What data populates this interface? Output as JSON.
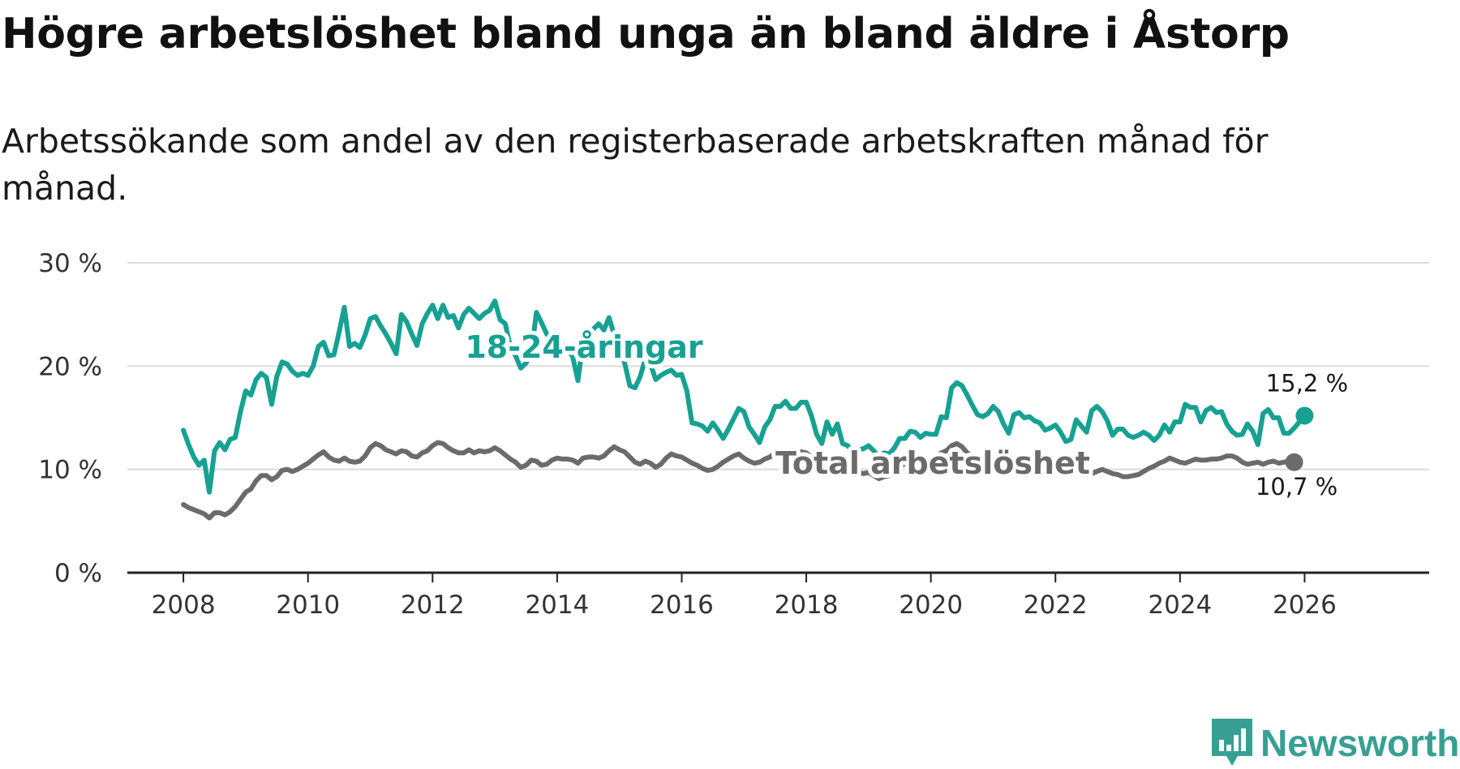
{
  "title": "Högre arbetslöshet bland unga än bland äldre i Åstorp",
  "subtitle": "Arbetssökande som andel av den registerbaserade arbetskraften månad för månad.",
  "brand": {
    "name": "Newsworthy",
    "color": "#37a093"
  },
  "chart_data": {
    "type": "line",
    "x_start": 2008.0,
    "x_step": 0.08333,
    "ylim": [
      0,
      30
    ],
    "xlim": [
      2007.1,
      2028.0
    ],
    "yticks": [
      0,
      10,
      20,
      30
    ],
    "ytick_labels": [
      "0 %",
      "10 %",
      "20 %",
      "30 %"
    ],
    "xticks": [
      2008,
      2010,
      2012,
      2014,
      2016,
      2018,
      2020,
      2022,
      2024,
      2026
    ],
    "xtick_labels": [
      "2008",
      "2010",
      "2012",
      "2014",
      "2016",
      "2018",
      "2020",
      "2022",
      "2024",
      "2026"
    ],
    "grid": true,
    "series": [
      {
        "name": "18-24-åringar",
        "color": "#17a193",
        "label": "18-24-åringar",
        "end_label": "15,2 %",
        "values": [
          13.8,
          12.4,
          11.2,
          10.4,
          10.9,
          7.8,
          11.8,
          12.6,
          11.9,
          12.9,
          13.1,
          15.6,
          17.6,
          17.2,
          18.7,
          19.3,
          18.9,
          16.3,
          19.0,
          20.4,
          20.2,
          19.5,
          19.1,
          19.3,
          19.1,
          20.0,
          21.9,
          22.3,
          21.0,
          21.1,
          23.3,
          25.7,
          21.9,
          22.2,
          21.8,
          23.0,
          24.6,
          24.8,
          23.9,
          23.1,
          22.2,
          21.2,
          25.0,
          24.3,
          23.1,
          22.0,
          24.1,
          25.1,
          25.9,
          24.6,
          25.9,
          24.7,
          24.9,
          23.7,
          25.0,
          25.6,
          25.1,
          24.6,
          25.1,
          25.4,
          26.3,
          24.5,
          24.1,
          21.8,
          21.0,
          19.8,
          20.3,
          21.2,
          25.2,
          24.2,
          23.1,
          22.5,
          22.4,
          22.1,
          21.6,
          20.9,
          18.6,
          22.3,
          23.2,
          23.6,
          24.1,
          23.5,
          24.7,
          23.0,
          21.7,
          20.3,
          18.1,
          17.9,
          19.0,
          20.7,
          20.2,
          18.7,
          19.1,
          19.4,
          19.6,
          19.1,
          19.2,
          17.6,
          14.5,
          14.4,
          14.2,
          13.7,
          14.5,
          13.8,
          13.0,
          13.9,
          14.9,
          15.9,
          15.6,
          14.1,
          13.4,
          12.6,
          14.1,
          14.8,
          16.1,
          16.1,
          16.6,
          15.9,
          15.9,
          16.5,
          16.5,
          15.2,
          13.4,
          12.5,
          14.6,
          13.4,
          14.4,
          12.5,
          12.3,
          11.7,
          11.9,
          12.0,
          12.3,
          11.8,
          11.2,
          11.6,
          11.5,
          12.1,
          13.0,
          13.0,
          13.7,
          13.6,
          13.1,
          13.5,
          13.4,
          13.4,
          15.1,
          15.0,
          17.9,
          18.4,
          18.1,
          17.2,
          16.2,
          15.3,
          15.1,
          15.4,
          16.1,
          15.6,
          14.4,
          13.5,
          15.3,
          15.5,
          15.0,
          15.1,
          14.7,
          14.5,
          13.8,
          14.0,
          14.3,
          13.6,
          12.7,
          12.9,
          14.8,
          14.2,
          13.6,
          15.7,
          16.1,
          15.6,
          14.7,
          13.3,
          13.9,
          13.9,
          13.3,
          13.1,
          13.3,
          13.6,
          13.3,
          12.8,
          13.3,
          14.3,
          13.6,
          14.6,
          14.6,
          16.3,
          16.0,
          16.0,
          14.6,
          15.7,
          16.0,
          15.5,
          15.6,
          14.4,
          13.7,
          13.3,
          13.4,
          14.4,
          13.7,
          12.4,
          15.4,
          15.8,
          15.0,
          15.0,
          13.5,
          13.5,
          14.0,
          14.6,
          15.2
        ]
      },
      {
        "name": "Total arbetslöshet",
        "color": "#6b6b6d",
        "label": "Total arbetslöshet",
        "end_label": "10,7 %",
        "values": [
          6.6,
          6.3,
          6.1,
          5.9,
          5.7,
          5.3,
          5.8,
          5.8,
          5.6,
          5.9,
          6.4,
          7.1,
          7.8,
          8.1,
          8.9,
          9.4,
          9.4,
          9.0,
          9.3,
          9.9,
          10.0,
          9.8,
          10.0,
          10.3,
          10.6,
          11.0,
          11.4,
          11.7,
          11.2,
          10.9,
          10.8,
          11.1,
          10.8,
          10.7,
          10.8,
          11.3,
          12.1,
          12.5,
          12.3,
          11.9,
          11.7,
          11.5,
          11.8,
          11.7,
          11.3,
          11.2,
          11.6,
          11.8,
          12.3,
          12.6,
          12.5,
          12.1,
          11.8,
          11.6,
          11.6,
          11.9,
          11.6,
          11.8,
          11.7,
          11.8,
          12.1,
          11.8,
          11.4,
          11.0,
          10.7,
          10.2,
          10.4,
          10.9,
          10.8,
          10.4,
          10.5,
          10.9,
          11.1,
          11.0,
          11.0,
          10.9,
          10.6,
          11.1,
          11.2,
          11.2,
          11.1,
          11.3,
          11.8,
          12.2,
          11.9,
          11.7,
          11.2,
          10.7,
          10.5,
          10.8,
          10.6,
          10.2,
          10.5,
          11.1,
          11.5,
          11.3,
          11.2,
          10.9,
          10.6,
          10.4,
          10.1,
          9.9,
          10.0,
          10.3,
          10.7,
          11.0,
          11.3,
          11.5,
          11.1,
          10.8,
          10.6,
          10.7,
          11.0,
          11.2,
          11.6,
          11.7,
          11.9,
          11.6,
          11.5,
          11.7,
          11.6,
          11.2,
          10.9,
          10.2,
          10.6,
          10.6,
          10.4,
          10.0,
          9.8,
          9.6,
          9.7,
          9.6,
          9.7,
          9.4,
          9.1,
          9.3,
          9.4,
          9.9,
          10.3,
          10.5,
          10.9,
          11.1,
          10.7,
          10.8,
          10.9,
          11.2,
          11.6,
          11.8,
          12.3,
          12.5,
          12.2,
          11.6,
          11.3,
          11.1,
          10.8,
          10.9,
          11.1,
          10.9,
          10.6,
          10.4,
          10.2,
          10.4,
          10.5,
          10.6,
          10.3,
          10.1,
          10.0,
          9.8,
          10.1,
          9.8,
          9.6,
          9.7,
          9.9,
          9.8,
          9.5,
          9.6,
          9.8,
          10.0,
          9.8,
          9.6,
          9.5,
          9.3,
          9.3,
          9.4,
          9.5,
          9.8,
          10.1,
          10.3,
          10.6,
          10.8,
          11.1,
          10.9,
          10.7,
          10.6,
          10.8,
          11.0,
          10.9,
          10.9,
          11.0,
          11.0,
          11.1,
          11.3,
          11.3,
          11.1,
          10.7,
          10.5,
          10.6,
          10.7,
          10.5,
          10.7,
          10.8,
          10.6,
          10.7,
          10.8,
          10.7
        ]
      }
    ]
  }
}
